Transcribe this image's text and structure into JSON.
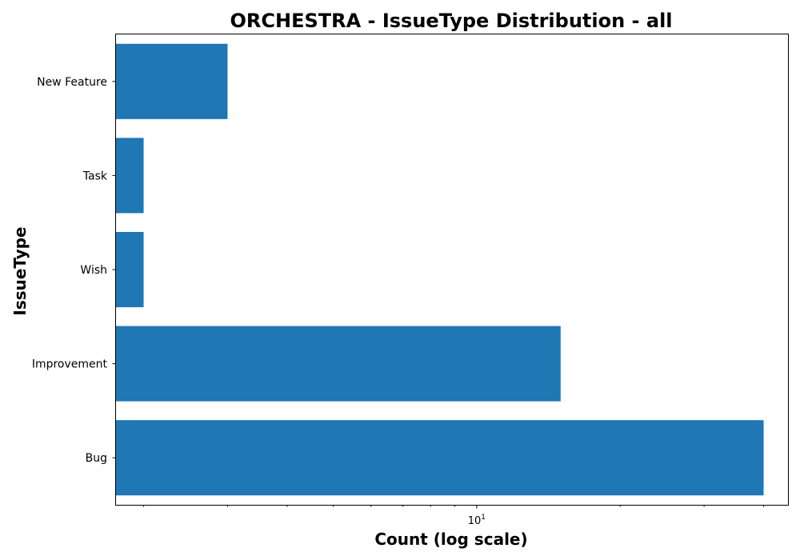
{
  "chart_data": {
    "type": "bar",
    "orientation": "horizontal",
    "title": "ORCHESTRA - IssueType Distribution - all",
    "xlabel": "Count (log scale)",
    "ylabel": "IssueType",
    "x_scale": "log",
    "xlim": [
      1.75,
      45
    ],
    "x_major_ticks": [
      10
    ],
    "x_minor_ticks": [
      2,
      3,
      4,
      5,
      6,
      7,
      8,
      9,
      20,
      30,
      40
    ],
    "categories": [
      "Bug",
      "Improvement",
      "Wish",
      "Task",
      "New Feature"
    ],
    "values": [
      40,
      15,
      2,
      2,
      3
    ],
    "bar_color": "#1f77b4",
    "grid": false
  }
}
